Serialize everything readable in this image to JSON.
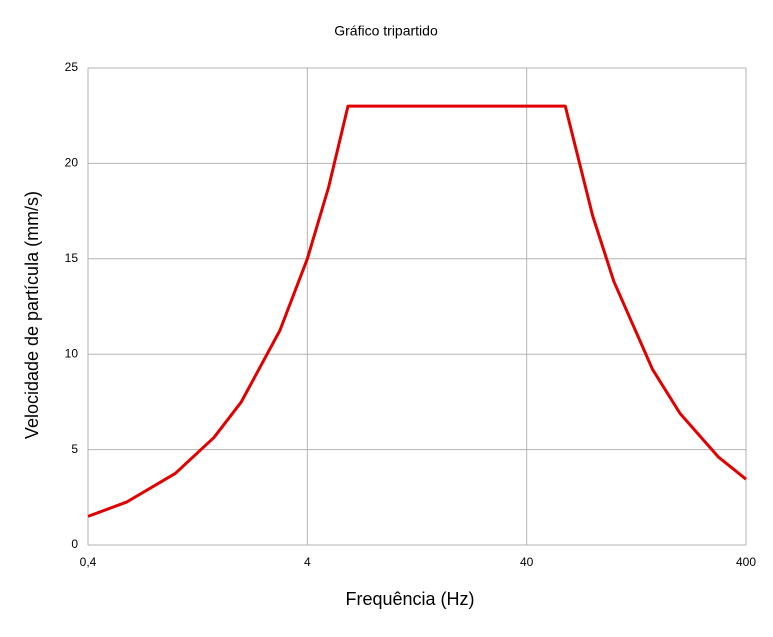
{
  "chart_data": {
    "type": "line",
    "title": "Gráfico tripartido",
    "x_label": "Frequência (Hz)",
    "y_label": "Velocidade de partícula (mm/s)",
    "x_log": true,
    "grid": true,
    "xlim": [
      0.4,
      400
    ],
    "xticks": [
      {
        "value": 0.4,
        "label": "0,4"
      },
      4,
      40,
      400
    ],
    "ylim": [
      0,
      25
    ],
    "yticks": [
      0,
      5,
      10,
      15,
      20,
      25
    ],
    "series": [
      {
        "color": "#e00000",
        "x": [
          0.4,
          0.6,
          1,
          1.5,
          2,
          3,
          4,
          5,
          6.13,
          60,
          80,
          100,
          150,
          200,
          300,
          400
        ],
        "values": [
          1.5,
          2.25,
          3.75,
          5.63,
          7.5,
          11.25,
          15,
          18.75,
          23,
          23,
          17.25,
          13.8,
          9.2,
          6.9,
          4.6,
          3.45
        ]
      }
    ]
  }
}
